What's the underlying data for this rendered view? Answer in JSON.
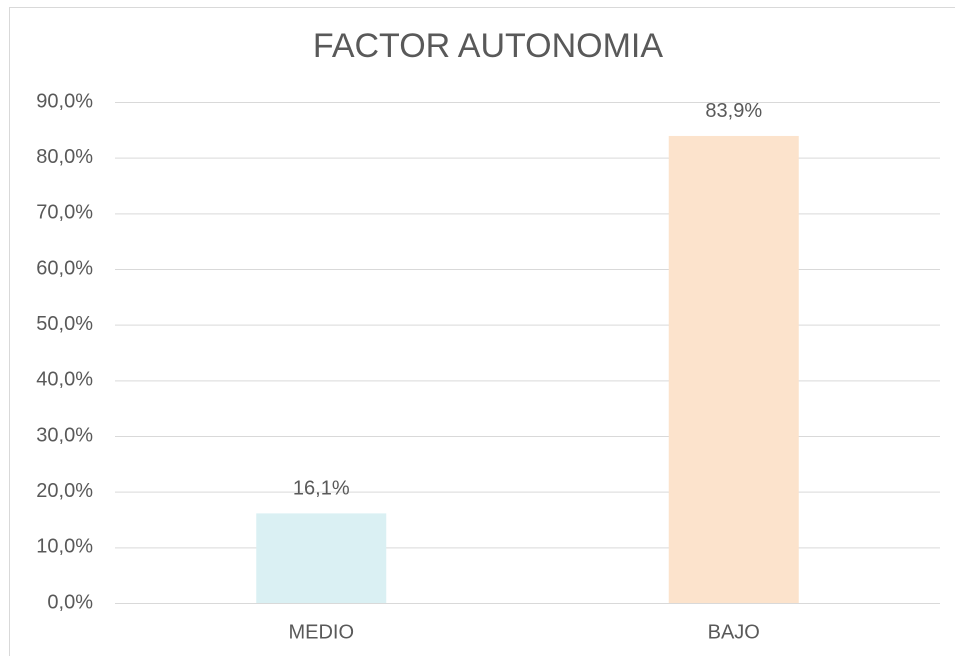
{
  "chart_data": {
    "type": "bar",
    "title": "FACTOR AUTONOMIA",
    "categories": [
      "MEDIO",
      "BAJO"
    ],
    "values": [
      16.1,
      83.9
    ],
    "value_labels": [
      "16,1%",
      "83,9%"
    ],
    "colors": [
      "#daf0f3",
      "#fce3cc"
    ],
    "ylim": [
      0,
      90
    ],
    "yticks": [
      {
        "value": 0,
        "label": "0,0%"
      },
      {
        "value": 10,
        "label": "10,0%"
      },
      {
        "value": 20,
        "label": "20,0%"
      },
      {
        "value": 30,
        "label": "30,0%"
      },
      {
        "value": 40,
        "label": "40,0%"
      },
      {
        "value": 50,
        "label": "50,0%"
      },
      {
        "value": 60,
        "label": "60,0%"
      },
      {
        "value": 70,
        "label": "70,0%"
      },
      {
        "value": 80,
        "label": "80,0%"
      },
      {
        "value": 90,
        "label": "90,0%"
      }
    ],
    "grid": true
  }
}
